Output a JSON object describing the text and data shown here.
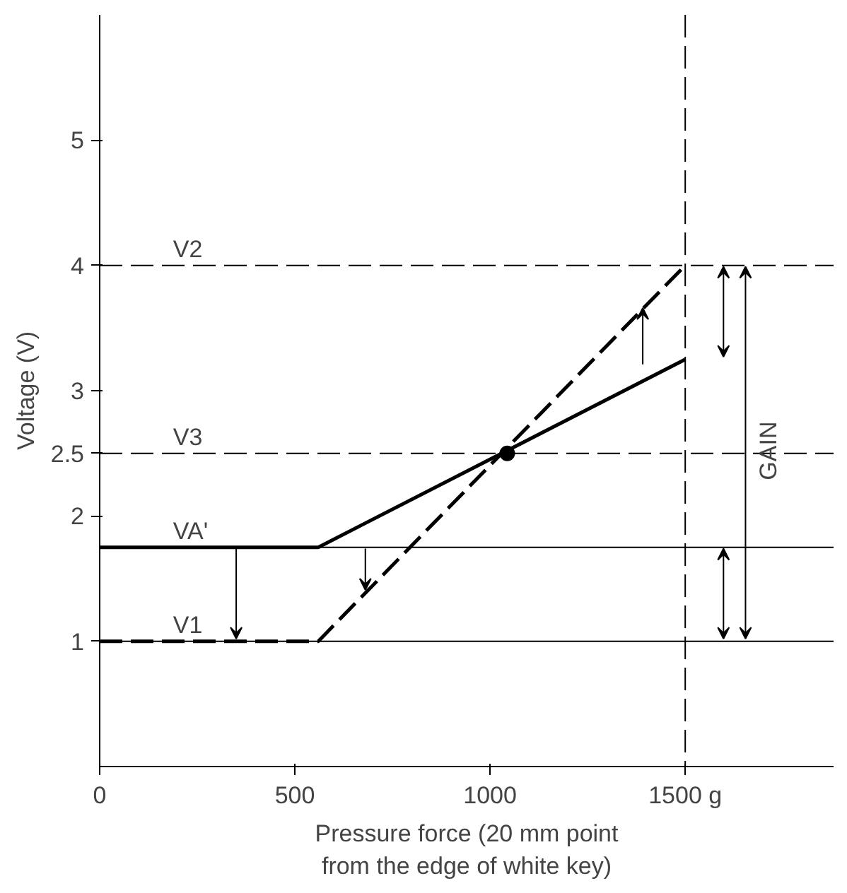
{
  "chart_data": {
    "type": "line",
    "xlabel": "Pressure force (20 mm point\nfrom the edge of white key)",
    "ylabel": "Voltage (V)",
    "xlim": [
      0,
      1880
    ],
    "ylim": [
      0,
      6
    ],
    "xticks": [
      0,
      500,
      1000,
      {
        "value": 1500,
        "label": "1500 g"
      }
    ],
    "yticks": [
      1,
      2,
      2.5,
      3,
      4,
      5
    ],
    "series": [
      {
        "color": "#000000",
        "x": [
          0,
          560,
          1500
        ],
        "values": [
          1.75,
          1.75,
          3.25
        ],
        "line_style": "solid"
      },
      {
        "color": "#000000",
        "x": [
          0,
          560,
          1500
        ],
        "values": [
          1,
          1,
          4
        ],
        "line_style": "dashed"
      },
      {
        "type": "scatter",
        "color": "#000000",
        "x": [
          1044
        ],
        "values": [
          2.5
        ],
        "marker": "circle"
      }
    ],
    "ref_lines": [
      {
        "axis": "y",
        "value": 4,
        "label": "V2",
        "line_style": "dashed"
      },
      {
        "axis": "y",
        "value": 2.5,
        "label": "V3",
        "line_style": "dashed"
      },
      {
        "axis": "y",
        "value": 1.75,
        "label": "VA'",
        "line_style": "solid"
      },
      {
        "axis": "y",
        "value": 1,
        "label": "V1",
        "line_style": "solid"
      },
      {
        "axis": "x",
        "value": 1500,
        "line_style": "dashed"
      }
    ],
    "annotations": [
      "GAIN"
    ],
    "grid": false
  }
}
